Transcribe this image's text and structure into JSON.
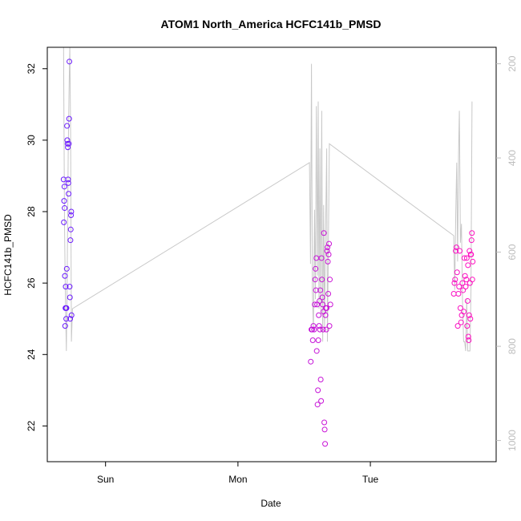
{
  "chart_data": {
    "type": "scatter",
    "title": "ATOM1 North_America HCFC141b_PMSD",
    "xlabel": "Date",
    "ylabel": "HCFC141b_PMSD",
    "x_ticks": [
      {
        "label": "Sun",
        "value": 1.0
      },
      {
        "label": "Mon",
        "value": 2.0
      },
      {
        "label": "Tue",
        "value": 3.0
      }
    ],
    "xlim": [
      0.56,
      3.95
    ],
    "ylim": [
      21.0,
      32.6
    ],
    "y_ticks": [
      22,
      24,
      26,
      28,
      30,
      32
    ],
    "y2_ticks": [
      200,
      400,
      600,
      800,
      1000
    ],
    "y2lim": [
      1045,
      165
    ],
    "y2_reversed": true,
    "grid": false,
    "legend": "none",
    "colors": {
      "line": "#c8c8c8",
      "axis": "#000000",
      "y2_axis": "#bdbdbd",
      "points_start": "#6a1bff",
      "points_end": "#ff10c0"
    },
    "series": [
      {
        "type": "points",
        "values": [
          {
            "x": 0.683,
            "y": 28.9
          },
          {
            "x": 0.685,
            "y": 27.7
          },
          {
            "x": 0.687,
            "y": 28.3
          },
          {
            "x": 0.689,
            "y": 28.7
          },
          {
            "x": 0.691,
            "y": 28.1
          },
          {
            "x": 0.693,
            "y": 26.2
          },
          {
            "x": 0.695,
            "y": 24.8
          },
          {
            "x": 0.697,
            "y": 25.3
          },
          {
            "x": 0.699,
            "y": 25.9
          },
          {
            "x": 0.701,
            "y": 25.3
          },
          {
            "x": 0.703,
            "y": 25.0
          },
          {
            "x": 0.705,
            "y": 25.3
          },
          {
            "x": 0.707,
            "y": 26.4
          },
          {
            "x": 0.709,
            "y": 30.4
          },
          {
            "x": 0.711,
            "y": 30.0
          },
          {
            "x": 0.713,
            "y": 29.9
          },
          {
            "x": 0.715,
            "y": 29.8
          },
          {
            "x": 0.717,
            "y": 28.9
          },
          {
            "x": 0.719,
            "y": 28.8
          },
          {
            "x": 0.721,
            "y": 28.5
          },
          {
            "x": 0.723,
            "y": 29.9
          },
          {
            "x": 0.725,
            "y": 30.6
          },
          {
            "x": 0.727,
            "y": 32.2
          },
          {
            "x": 0.729,
            "y": 25.9
          },
          {
            "x": 0.731,
            "y": 25.6
          },
          {
            "x": 0.733,
            "y": 25.0
          },
          {
            "x": 0.735,
            "y": 27.2
          },
          {
            "x": 0.737,
            "y": 27.5
          },
          {
            "x": 0.739,
            "y": 27.9
          },
          {
            "x": 0.741,
            "y": 28.0
          },
          {
            "x": 0.743,
            "y": 25.1
          },
          {
            "x": 2.55,
            "y": 23.8
          },
          {
            "x": 2.555,
            "y": 24.7
          },
          {
            "x": 2.56,
            "y": 24.7
          },
          {
            "x": 2.565,
            "y": 24.4
          },
          {
            "x": 2.57,
            "y": 24.8
          },
          {
            "x": 2.575,
            "y": 24.7
          },
          {
            "x": 2.58,
            "y": 25.4
          },
          {
            "x": 2.583,
            "y": 26.1
          },
          {
            "x": 2.586,
            "y": 26.4
          },
          {
            "x": 2.589,
            "y": 25.8
          },
          {
            "x": 2.592,
            "y": 26.7
          },
          {
            "x": 2.595,
            "y": 24.1
          },
          {
            "x": 2.598,
            "y": 25.4
          },
          {
            "x": 2.601,
            "y": 22.6
          },
          {
            "x": 2.604,
            "y": 23.0
          },
          {
            "x": 2.607,
            "y": 24.4
          },
          {
            "x": 2.61,
            "y": 25.1
          },
          {
            "x": 2.613,
            "y": 24.8
          },
          {
            "x": 2.616,
            "y": 25.5
          },
          {
            "x": 2.619,
            "y": 24.7
          },
          {
            "x": 2.622,
            "y": 25.8
          },
          {
            "x": 2.625,
            "y": 23.3
          },
          {
            "x": 2.628,
            "y": 22.7
          },
          {
            "x": 2.631,
            "y": 26.7
          },
          {
            "x": 2.634,
            "y": 26.1
          },
          {
            "x": 2.637,
            "y": 25.6
          },
          {
            "x": 2.64,
            "y": 25.4
          },
          {
            "x": 2.643,
            "y": 24.7
          },
          {
            "x": 2.646,
            "y": 25.2
          },
          {
            "x": 2.649,
            "y": 27.4
          },
          {
            "x": 2.652,
            "y": 22.1
          },
          {
            "x": 2.655,
            "y": 21.9
          },
          {
            "x": 2.658,
            "y": 21.5
          },
          {
            "x": 2.661,
            "y": 25.1
          },
          {
            "x": 2.664,
            "y": 25.3
          },
          {
            "x": 2.667,
            "y": 24.7
          },
          {
            "x": 2.67,
            "y": 25.3
          },
          {
            "x": 2.673,
            "y": 26.9
          },
          {
            "x": 2.676,
            "y": 27.0
          },
          {
            "x": 2.679,
            "y": 26.6
          },
          {
            "x": 2.682,
            "y": 25.7
          },
          {
            "x": 2.685,
            "y": 26.8
          },
          {
            "x": 2.688,
            "y": 27.1
          },
          {
            "x": 2.691,
            "y": 24.8
          },
          {
            "x": 2.694,
            "y": 26.1
          },
          {
            "x": 2.698,
            "y": 25.4
          },
          {
            "x": 3.63,
            "y": 25.7
          },
          {
            "x": 3.635,
            "y": 26.0
          },
          {
            "x": 3.64,
            "y": 26.1
          },
          {
            "x": 3.645,
            "y": 26.9
          },
          {
            "x": 3.65,
            "y": 27.0
          },
          {
            "x": 3.655,
            "y": 26.3
          },
          {
            "x": 3.66,
            "y": 24.8
          },
          {
            "x": 3.665,
            "y": 25.7
          },
          {
            "x": 3.67,
            "y": 25.9
          },
          {
            "x": 3.675,
            "y": 26.9
          },
          {
            "x": 3.68,
            "y": 25.3
          },
          {
            "x": 3.685,
            "y": 24.9
          },
          {
            "x": 3.69,
            "y": 25.1
          },
          {
            "x": 3.695,
            "y": 26.0
          },
          {
            "x": 3.7,
            "y": 25.8
          },
          {
            "x": 3.705,
            "y": 25.2
          },
          {
            "x": 3.71,
            "y": 26.7
          },
          {
            "x": 3.715,
            "y": 26.2
          },
          {
            "x": 3.72,
            "y": 25.9
          },
          {
            "x": 3.725,
            "y": 26.1
          },
          {
            "x": 3.728,
            "y": 26.7
          },
          {
            "x": 3.731,
            "y": 24.8
          },
          {
            "x": 3.734,
            "y": 25.5
          },
          {
            "x": 3.737,
            "y": 26.5
          },
          {
            "x": 3.74,
            "y": 24.5
          },
          {
            "x": 3.743,
            "y": 24.4
          },
          {
            "x": 3.746,
            "y": 25.1
          },
          {
            "x": 3.749,
            "y": 26.9
          },
          {
            "x": 3.752,
            "y": 26.0
          },
          {
            "x": 3.755,
            "y": 25.0
          },
          {
            "x": 3.758,
            "y": 26.8
          },
          {
            "x": 3.761,
            "y": 26.8
          },
          {
            "x": 3.764,
            "y": 27.2
          },
          {
            "x": 3.767,
            "y": 27.4
          },
          {
            "x": 3.77,
            "y": 26.1
          },
          {
            "x": 3.773,
            "y": 26.6
          }
        ]
      },
      {
        "type": "line",
        "axis": "right",
        "values": [
          {
            "x": 0.683,
            "y": 165
          },
          {
            "x": 0.69,
            "y": 540
          },
          {
            "x": 0.697,
            "y": 700
          },
          {
            "x": 0.704,
            "y": 810
          },
          {
            "x": 0.711,
            "y": 640
          },
          {
            "x": 0.718,
            "y": 390
          },
          {
            "x": 0.725,
            "y": 240
          },
          {
            "x": 0.73,
            "y": 165
          },
          {
            "x": 0.736,
            "y": 350
          },
          {
            "x": 0.742,
            "y": 790
          },
          {
            "x": 0.75,
            "y": 720
          },
          {
            "x": 2.54,
            "y": 410
          },
          {
            "x": 2.548,
            "y": 625
          },
          {
            "x": 2.555,
            "y": 200
          },
          {
            "x": 2.562,
            "y": 680
          },
          {
            "x": 2.57,
            "y": 770
          },
          {
            "x": 2.578,
            "y": 510
          },
          {
            "x": 2.585,
            "y": 700
          },
          {
            "x": 2.592,
            "y": 290
          },
          {
            "x": 2.6,
            "y": 650
          },
          {
            "x": 2.606,
            "y": 280
          },
          {
            "x": 2.612,
            "y": 720
          },
          {
            "x": 2.619,
            "y": 380
          },
          {
            "x": 2.626,
            "y": 730
          },
          {
            "x": 2.633,
            "y": 300
          },
          {
            "x": 2.64,
            "y": 790
          },
          {
            "x": 2.647,
            "y": 500
          },
          {
            "x": 2.654,
            "y": 760
          },
          {
            "x": 2.662,
            "y": 560
          },
          {
            "x": 2.67,
            "y": 380
          },
          {
            "x": 2.676,
            "y": 790
          },
          {
            "x": 2.682,
            "y": 620
          },
          {
            "x": 2.69,
            "y": 370
          },
          {
            "x": 3.63,
            "y": 565
          },
          {
            "x": 3.637,
            "y": 680
          },
          {
            "x": 3.645,
            "y": 520
          },
          {
            "x": 3.652,
            "y": 410
          },
          {
            "x": 3.659,
            "y": 620
          },
          {
            "x": 3.666,
            "y": 390
          },
          {
            "x": 3.672,
            "y": 300
          },
          {
            "x": 3.68,
            "y": 580
          },
          {
            "x": 3.688,
            "y": 540
          },
          {
            "x": 3.696,
            "y": 700
          },
          {
            "x": 3.704,
            "y": 790
          },
          {
            "x": 3.712,
            "y": 790
          },
          {
            "x": 3.72,
            "y": 810
          },
          {
            "x": 3.728,
            "y": 700
          },
          {
            "x": 3.736,
            "y": 810
          },
          {
            "x": 3.744,
            "y": 810
          },
          {
            "x": 3.752,
            "y": 810
          },
          {
            "x": 3.76,
            "y": 680
          },
          {
            "x": 3.768,
            "y": 280
          }
        ]
      }
    ]
  }
}
